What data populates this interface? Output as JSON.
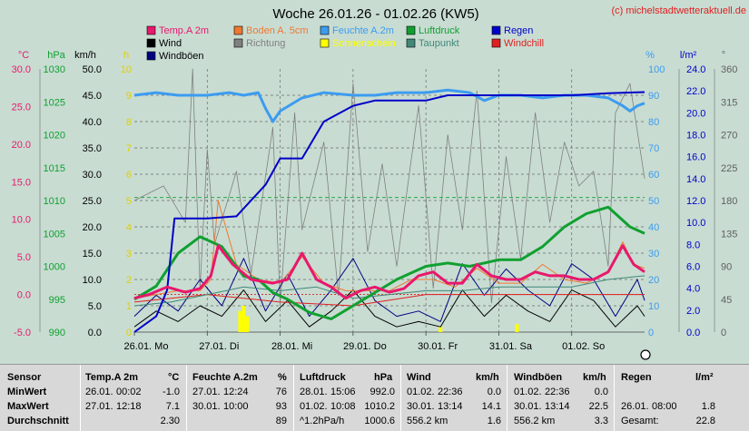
{
  "header": {
    "title": "Woche 26.01.26 - 01.02.26 (KW5)",
    "credit": "(c) michelstadtwetteraktuell.de"
  },
  "axis_titles": {
    "celsius": "°C",
    "hpa": "hPa",
    "kmh": "km/h",
    "h": "h",
    "percent": "%",
    "lm2": "l/m²",
    "degree": "°"
  },
  "legend": [
    {
      "label": "Temp.A 2m",
      "color": "#e8186c",
      "key": "temp"
    },
    {
      "label": "Boden A. 5cm",
      "color": "#f07830",
      "key": "boden"
    },
    {
      "label": "Feuchte A.2m",
      "color": "#3c9cf0",
      "key": "feuchte"
    },
    {
      "label": "Luftdruck",
      "color": "#10a030",
      "key": "druck"
    },
    {
      "label": "Regen",
      "color": "#0000c8",
      "key": "regen"
    },
    {
      "label": "Wind",
      "color": "#000000",
      "key": "wind"
    },
    {
      "label": "Richtung",
      "color": "#808080",
      "key": "richtung"
    },
    {
      "label": "Sonnenschein",
      "color": "#ffff00",
      "key": "sonne"
    },
    {
      "label": "Taupunkt",
      "color": "#408878",
      "key": "taupunkt"
    },
    {
      "label": "Windchill",
      "color": "#e02020",
      "key": "windchill"
    },
    {
      "label": "Windböen",
      "color": "#000080",
      "key": "boeen"
    }
  ],
  "chart_data": {
    "type": "line",
    "title": "Woche 26.01.26 - 01.02.26 (KW5)",
    "x_range": [
      0,
      7
    ],
    "x_ticks": [
      {
        "x": 0,
        "label": "26.01. Mo"
      },
      {
        "x": 1,
        "label": "27.01. Di"
      },
      {
        "x": 2,
        "label": "28.01. Mi"
      },
      {
        "x": 3,
        "label": "29.01. Do"
      },
      {
        "x": 4,
        "label": "30.01. Fr"
      },
      {
        "x": 5,
        "label": "31.01. Sa"
      },
      {
        "x": 6,
        "label": "01.02. So"
      }
    ],
    "axes": {
      "celsius": {
        "range": [
          -5,
          30
        ],
        "ticks": [
          "-5.0",
          "0.0",
          "5.0",
          "10.0",
          "15.0",
          "20.0",
          "25.0",
          "30.0"
        ],
        "color": "#e8186c"
      },
      "hpa": {
        "range": [
          990,
          1030
        ],
        "ticks": [
          "990",
          "995",
          "1000",
          "1005",
          "1010",
          "1015",
          "1020",
          "1025",
          "1030"
        ],
        "color": "#10a030"
      },
      "kmh": {
        "range": [
          0,
          50
        ],
        "ticks": [
          "0.0",
          "5.0",
          "10.0",
          "15.0",
          "20.0",
          "25.0",
          "30.0",
          "35.0",
          "40.0",
          "45.0",
          "50.0"
        ],
        "color": "#000000"
      },
      "h": {
        "range": [
          0,
          10
        ],
        "ticks": [
          "0",
          "1",
          "2",
          "3",
          "4",
          "5",
          "6",
          "7",
          "8",
          "9",
          "10"
        ],
        "color": "#e0d000"
      },
      "percent": {
        "range": [
          0,
          100
        ],
        "ticks": [
          "0",
          "10",
          "20",
          "30",
          "40",
          "50",
          "60",
          "70",
          "80",
          "90",
          "100"
        ],
        "color": "#3c9cf0"
      },
      "lm2": {
        "range": [
          0,
          25
        ],
        "ticks": [
          "0.0",
          "2.0",
          "4.0",
          "6.0",
          "8.0",
          "10.0",
          "12.0",
          "14.0",
          "16.0",
          "18.0",
          "20.0",
          "22.0",
          "24.0"
        ],
        "color": "#0000c8"
      },
      "degree": {
        "range": [
          0,
          360
        ],
        "ticks": [
          "0",
          "45",
          "90",
          "135",
          "180",
          "225",
          "270",
          "315",
          "360"
        ],
        "color": "#606060"
      }
    },
    "series": [
      {
        "name": "Temp.A 2m",
        "axis": "celsius",
        "x": [
          0,
          0.2,
          0.45,
          0.7,
          0.9,
          1.05,
          1.15,
          1.35,
          1.6,
          1.9,
          2.1,
          2.3,
          2.5,
          2.7,
          2.9,
          3.1,
          3.3,
          3.5,
          3.7,
          3.9,
          4.1,
          4.3,
          4.5,
          4.7,
          4.9,
          5.1,
          5.3,
          5.5,
          5.7,
          5.9,
          6.1,
          6.3,
          6.5,
          6.7,
          6.85,
          7
        ],
        "y": [
          -0.5,
          0,
          1,
          0.3,
          0.8,
          2.5,
          6.5,
          4,
          2,
          1.5,
          2,
          5.5,
          2,
          1,
          -0.5,
          0.5,
          1,
          0.3,
          0.8,
          2.5,
          3,
          1.5,
          1.5,
          4,
          2.5,
          2,
          2,
          3,
          2.5,
          2.5,
          2,
          2,
          3,
          6.5,
          4,
          3
        ]
      },
      {
        "name": "Boden A. 5cm",
        "axis": "celsius",
        "x": [
          0,
          0.3,
          0.6,
          0.9,
          1.05,
          1.15,
          1.4,
          1.7,
          2,
          2.3,
          2.6,
          2.9,
          3.2,
          3.5,
          3.8,
          4.1,
          4.4,
          4.7,
          5,
          5.3,
          5.6,
          5.9,
          6.2,
          6.5,
          6.7,
          6.85,
          7
        ],
        "y": [
          -0.5,
          0,
          0.5,
          0.5,
          2,
          12.5,
          4,
          2,
          1.5,
          5,
          1.5,
          0.5,
          0.5,
          0.5,
          2,
          2,
          1,
          3.5,
          1.5,
          1.5,
          4,
          2,
          1.5,
          3,
          7,
          4,
          3.5
        ]
      },
      {
        "name": "Taupunkt",
        "axis": "celsius",
        "x": [
          0,
          0.5,
          1,
          1.5,
          2,
          2.5,
          3,
          3.5,
          4,
          4.5,
          5,
          5.5,
          6,
          6.5,
          7
        ],
        "y": [
          -1.5,
          -1,
          0,
          1,
          0.5,
          1,
          -0.5,
          0,
          0.5,
          0.5,
          1,
          1,
          1,
          2,
          2.5
        ]
      },
      {
        "name": "Windchill",
        "axis": "celsius",
        "x": [
          0,
          1,
          2,
          3,
          4,
          5,
          6,
          7
        ],
        "y": [
          -1,
          0,
          -1,
          -1.5,
          0,
          0,
          0,
          0
        ]
      },
      {
        "name": "Feuchte A.2m",
        "axis": "percent",
        "x": [
          0,
          0.3,
          0.6,
          1,
          1.3,
          1.5,
          1.7,
          1.8,
          1.9,
          2,
          2.3,
          2.6,
          3,
          3.3,
          3.6,
          4,
          4.3,
          4.6,
          4.8,
          5,
          5.3,
          5.6,
          5.9,
          6.2,
          6.5,
          6.7,
          6.8,
          6.9,
          7
        ],
        "y": [
          90,
          91,
          90,
          90,
          91,
          90,
          91,
          85,
          80,
          84,
          89,
          91,
          90,
          90,
          91,
          91,
          92,
          91,
          88,
          90,
          90,
          89,
          90,
          90,
          89,
          86,
          84,
          86,
          87
        ]
      },
      {
        "name": "Luftdruck",
        "axis": "hpa",
        "x": [
          0,
          0.3,
          0.6,
          0.9,
          1.2,
          1.5,
          1.7,
          1.9,
          2.1,
          2.4,
          2.7,
          3,
          3.3,
          3.6,
          4,
          4.3,
          4.6,
          5,
          5.3,
          5.6,
          5.9,
          6.2,
          6.5,
          6.8,
          7
        ],
        "y": [
          995,
          997,
          1002,
          1004.5,
          1003,
          998.5,
          998,
          996,
          995,
          993,
          992,
          994,
          996,
          998,
          1000,
          1000.5,
          1000,
          1001,
          1001,
          1003,
          1006,
          1008,
          1009,
          1006,
          1005
        ]
      },
      {
        "name": "Regen",
        "axis": "lm2",
        "x": [
          0,
          0.3,
          0.45,
          0.55,
          1,
          1.4,
          1.8,
          2,
          2.3,
          2.6,
          3,
          3.3,
          3.6,
          4,
          4.3,
          4.6,
          5,
          5.5,
          6,
          6.5,
          7
        ],
        "y": [
          0,
          1.5,
          4,
          10.8,
          10.8,
          11,
          14,
          16.5,
          16.5,
          20,
          21.5,
          22,
          22,
          22,
          22.5,
          22.5,
          22.5,
          22.5,
          22.5,
          22.7,
          22.8
        ]
      },
      {
        "name": "Wind",
        "axis": "kmh",
        "x": [
          0,
          0.3,
          0.6,
          0.9,
          1.2,
          1.5,
          1.8,
          2.1,
          2.4,
          2.7,
          3,
          3.3,
          3.6,
          3.9,
          4.2,
          4.5,
          4.8,
          5.1,
          5.4,
          5.7,
          6,
          6.3,
          6.6,
          6.9,
          7
        ],
        "y": [
          1,
          4,
          2,
          5,
          3,
          8,
          2,
          6,
          1,
          4,
          8,
          3,
          1,
          2,
          1,
          8,
          3,
          7,
          4,
          2,
          8,
          6,
          1,
          5,
          3
        ]
      },
      {
        "name": "Windböen",
        "axis": "kmh",
        "x": [
          0,
          0.3,
          0.6,
          0.9,
          1.2,
          1.5,
          1.8,
          2.1,
          2.4,
          2.7,
          3,
          3.3,
          3.6,
          3.9,
          4.2,
          4.5,
          4.8,
          5.1,
          5.4,
          5.7,
          6,
          6.3,
          6.6,
          6.9,
          7
        ],
        "y": [
          3,
          7,
          4,
          10,
          5,
          14,
          4,
          11,
          3,
          8,
          14,
          6,
          3,
          4,
          2,
          13,
          7,
          12,
          8,
          5,
          13,
          10,
          3,
          10,
          6
        ]
      },
      {
        "name": "Richtung",
        "axis": "degree",
        "x": [
          0,
          0.4,
          0.7,
          0.8,
          0.9,
          1,
          1.1,
          1.4,
          1.6,
          1.9,
          2,
          2.2,
          2.3,
          2.6,
          2.8,
          3,
          3.2,
          3.4,
          3.6,
          3.9,
          4.1,
          4.3,
          4.5,
          4.7,
          4.9,
          5.1,
          5.3,
          5.5,
          5.7,
          5.9,
          6.1,
          6.3,
          6.5,
          6.6,
          6.8,
          7
        ],
        "y": [
          180,
          200,
          150,
          360,
          60,
          250,
          120,
          220,
          80,
          280,
          40,
          300,
          140,
          260,
          50,
          340,
          110,
          230,
          90,
          310,
          60,
          270,
          140,
          330,
          40,
          240,
          100,
          300,
          150,
          260,
          200,
          220,
          90,
          300,
          340,
          210
        ]
      },
      {
        "name": "Sonnenschein",
        "axis": "h",
        "type": "bar",
        "x": [
          1.45,
          1.5,
          1.55,
          4.2,
          5.25
        ],
        "y": [
          0.8,
          1,
          0.6,
          0.2,
          0.3
        ]
      }
    ]
  },
  "stats": {
    "col_sensor": {
      "title": "Sensor",
      "rows": [
        "MinWert",
        "MaxWert",
        "Durchschnitt"
      ]
    },
    "temp": {
      "title": "Temp.A 2m",
      "unit": "°C",
      "rows": [
        [
          "26.01.",
          "00:02",
          "-1.0"
        ],
        [
          "27.01.",
          "12:18",
          "7.1"
        ],
        [
          "",
          "",
          "2.30"
        ]
      ]
    },
    "feuchte": {
      "title": "Feuchte A.2m",
      "unit": "%",
      "rows": [
        [
          "27.01.",
          "12:24",
          "76"
        ],
        [
          "30.01.",
          "10:00",
          "93"
        ],
        [
          "",
          "",
          "89"
        ]
      ]
    },
    "druck": {
      "title": "Luftdruck",
      "unit": "hPa",
      "rows": [
        [
          "28.01.",
          "15:06",
          "992.0"
        ],
        [
          "01.02.",
          "10:08",
          "1010.2"
        ],
        [
          "^1.2hPa/h",
          "",
          "1000.6"
        ]
      ]
    },
    "wind": {
      "title": "Wind",
      "unit": "km/h",
      "rows": [
        [
          "01.02.",
          "22:36",
          "0.0"
        ],
        [
          "30.01.",
          "13:14",
          "14.1"
        ],
        [
          "556.2 km",
          "",
          "1.6"
        ]
      ]
    },
    "boeen": {
      "title": "Windböen",
      "unit": "km/h",
      "rows": [
        [
          "01.02.",
          "22:36",
          "0.0"
        ],
        [
          "30.01.",
          "13:14",
          "22.5"
        ],
        [
          "556.2 km",
          "",
          "3.3"
        ]
      ]
    },
    "regen": {
      "title": "Regen",
      "unit": "l/m²",
      "rows": [
        [
          "",
          "",
          ""
        ],
        [
          "26.01.",
          "08:00",
          "1.8"
        ],
        [
          "Gesamt:",
          "",
          "22.8"
        ]
      ]
    }
  }
}
